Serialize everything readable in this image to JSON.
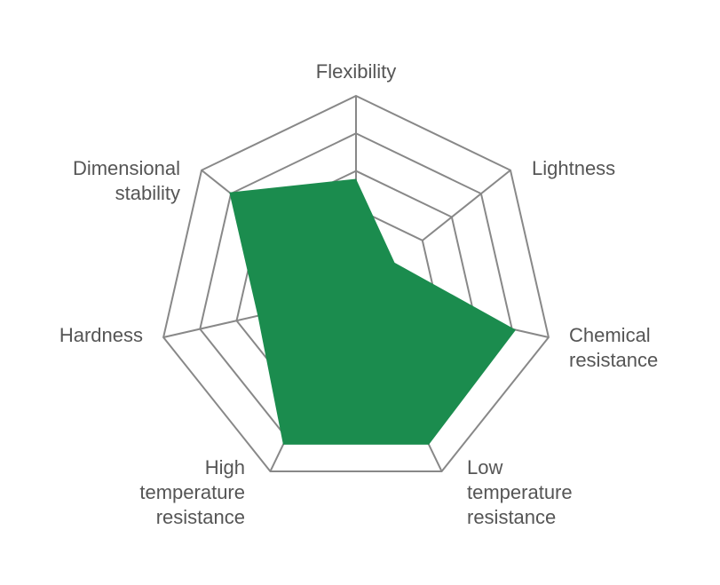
{
  "chart_data": {
    "type": "radar",
    "categories": [
      "Flexibility",
      "Lightness",
      "Chemical resistance",
      "Low temperature resistance",
      "High temperature resistance",
      "Hardness",
      "Dimensional stability"
    ],
    "values": [
      58,
      25,
      83,
      85,
      85,
      51,
      82
    ],
    "color": "#1b8c4e",
    "rlim": [
      0,
      100
    ],
    "rticks": [
      43,
      62,
      81,
      100
    ],
    "grid": true
  }
}
